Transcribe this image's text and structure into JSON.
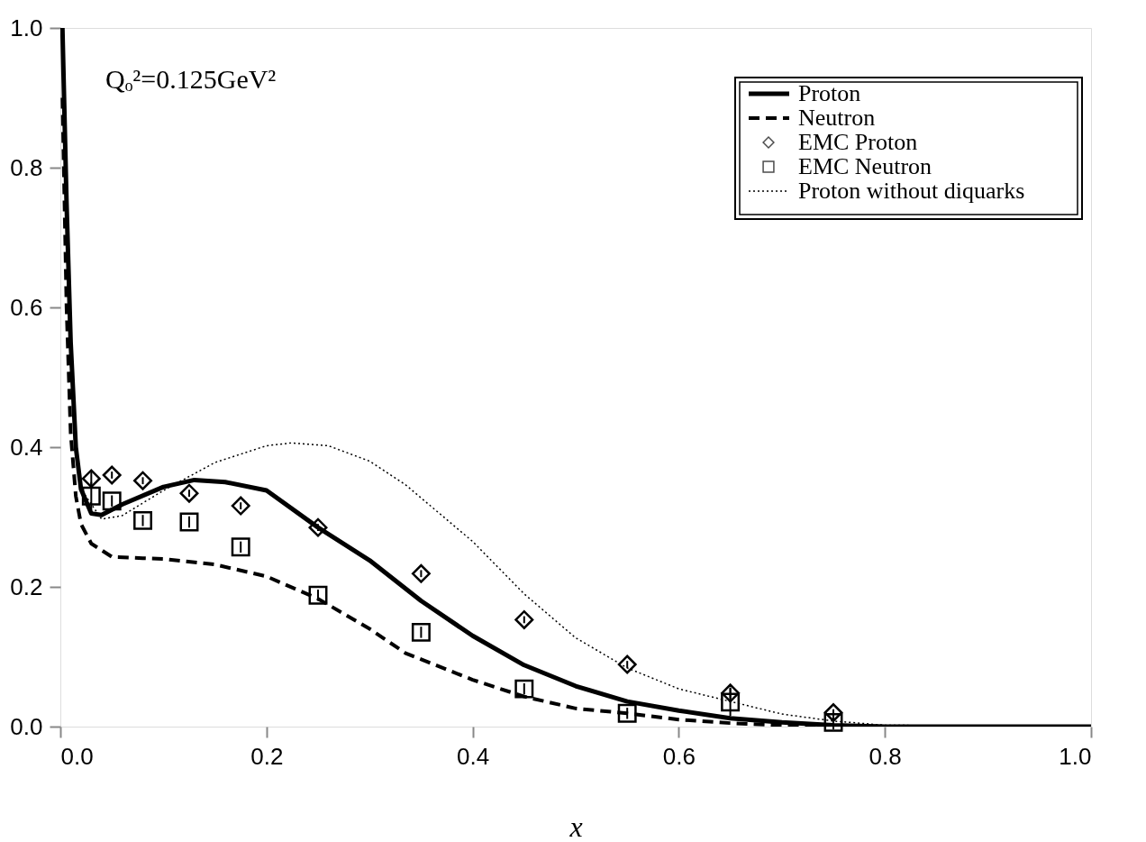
{
  "chart_data": {
    "type": "line",
    "xlabel": "x",
    "xlim": [
      0,
      1
    ],
    "ylim": [
      0,
      1
    ],
    "xticks": [
      {
        "value": 0,
        "label": "0.0"
      },
      0.2,
      0.4,
      0.6,
      0.8,
      {
        "value": 1,
        "label": "1.0"
      }
    ],
    "yticks": [
      {
        "value": 0,
        "label": "0.0"
      },
      0.2,
      0.4,
      0.6,
      0.8,
      {
        "value": 1,
        "label": "1.0"
      }
    ],
    "annotations": [
      {
        "text": "Qₒ²=0.125GeV²"
      }
    ],
    "legend": "top right",
    "grid": false,
    "series": [
      {
        "name": "Proton",
        "color": "#000000",
        "line_style": "solid",
        "x": [
          0.002,
          0.006,
          0.01,
          0.015,
          0.02,
          0.03,
          0.04,
          0.06,
          0.1,
          0.13,
          0.16,
          0.2,
          0.25,
          0.3,
          0.35,
          0.4,
          0.45,
          0.5,
          0.55,
          0.6,
          0.65,
          0.7,
          0.75,
          0.8,
          1.0
        ],
        "values": [
          1.0,
          0.75,
          0.55,
          0.4,
          0.34,
          0.305,
          0.303,
          0.318,
          0.343,
          0.353,
          0.35,
          0.338,
          0.285,
          0.238,
          0.18,
          0.13,
          0.088,
          0.058,
          0.036,
          0.023,
          0.012,
          0.006,
          0.002,
          0.0,
          0.0
        ]
      },
      {
        "name": "Neutron",
        "color": "#000000",
        "line_style": "dashed",
        "x": [
          0.002,
          0.006,
          0.01,
          0.015,
          0.02,
          0.03,
          0.05,
          0.08,
          0.1,
          0.15,
          0.2,
          0.25,
          0.3,
          0.335,
          0.4,
          0.45,
          0.5,
          0.55,
          0.6,
          0.65,
          0.7,
          0.8,
          1.0
        ],
        "values": [
          0.9,
          0.6,
          0.42,
          0.33,
          0.29,
          0.262,
          0.243,
          0.241,
          0.24,
          0.232,
          0.215,
          0.183,
          0.14,
          0.105,
          0.067,
          0.043,
          0.026,
          0.019,
          0.01,
          0.005,
          0.002,
          0.0,
          0.0
        ]
      },
      {
        "name": "EMC Proton",
        "type": "scatter",
        "marker": "diamond",
        "color": "#000000",
        "x": [
          0.03,
          0.05,
          0.08,
          0.125,
          0.175,
          0.25,
          0.35,
          0.45,
          0.55,
          0.65,
          0.75
        ],
        "values": [
          0.355,
          0.36,
          0.352,
          0.334,
          0.316,
          0.285,
          0.219,
          0.153,
          0.089,
          0.048,
          0.02
        ],
        "errors": [
          0.01,
          0.005,
          0.005,
          0.005,
          0.005,
          0.005,
          0.005,
          0.005,
          0.005,
          0.008,
          0.005
        ]
      },
      {
        "name": "EMC Neutron",
        "type": "scatter",
        "marker": "square",
        "color": "#000000",
        "x": [
          0.03,
          0.05,
          0.08,
          0.125,
          0.175,
          0.25,
          0.35,
          0.45,
          0.55,
          0.65,
          0.75
        ],
        "values": [
          0.33,
          0.323,
          0.295,
          0.293,
          0.257,
          0.188,
          0.135,
          0.054,
          0.019,
          0.035,
          0.006
        ],
        "errors": [
          0.02,
          0.008,
          0.008,
          0.008,
          0.008,
          0.008,
          0.008,
          0.008,
          0.008,
          0.02,
          0.01
        ]
      },
      {
        "name": "Proton without diquarks",
        "color": "#000000",
        "line_style": "dotted",
        "x": [
          0.002,
          0.006,
          0.01,
          0.015,
          0.02,
          0.04,
          0.06,
          0.1,
          0.15,
          0.2,
          0.224,
          0.26,
          0.3,
          0.335,
          0.4,
          0.45,
          0.5,
          0.55,
          0.6,
          0.65,
          0.7,
          0.75,
          0.8,
          1.0
        ],
        "values": [
          1.0,
          0.72,
          0.52,
          0.4,
          0.34,
          0.297,
          0.302,
          0.338,
          0.378,
          0.402,
          0.406,
          0.402,
          0.38,
          0.346,
          0.265,
          0.19,
          0.127,
          0.084,
          0.054,
          0.036,
          0.018,
          0.008,
          0.002,
          0.0
        ]
      }
    ]
  }
}
